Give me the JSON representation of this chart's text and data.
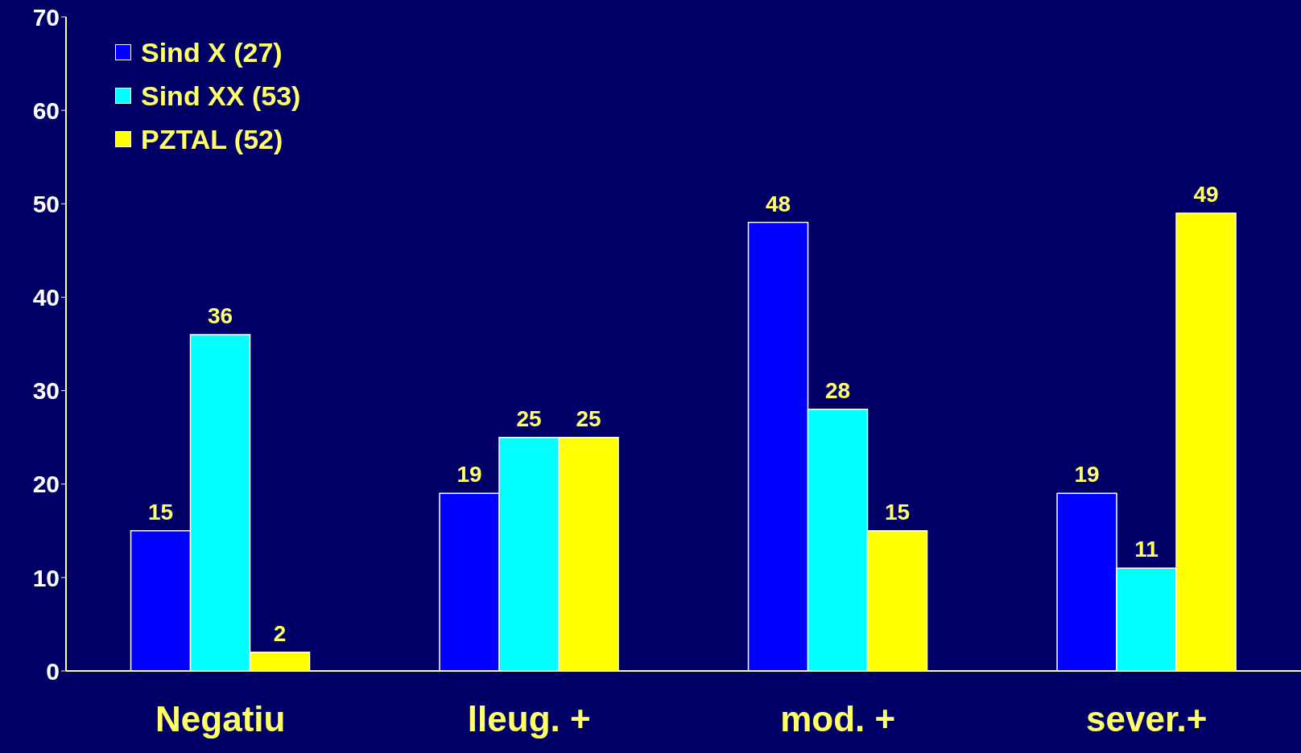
{
  "chart_data": {
    "type": "bar",
    "categories": [
      "Negatiu",
      "lleug. +",
      "mod. +",
      "sever.+"
    ],
    "series": [
      {
        "name": "Sind X (27)",
        "color": "#0000ff",
        "values": [
          15,
          19,
          48,
          19
        ]
      },
      {
        "name": "Sind XX (53)",
        "color": "#00ffff",
        "values": [
          36,
          25,
          28,
          11
        ]
      },
      {
        "name": "PZTAL (52)",
        "color": "#ffff00",
        "values": [
          2,
          25,
          15,
          49
        ]
      }
    ],
    "ylim": [
      0,
      70
    ],
    "yticks": [
      0,
      10,
      20,
      30,
      40,
      50,
      60,
      70
    ],
    "data_labels": true,
    "legend": "top left"
  }
}
